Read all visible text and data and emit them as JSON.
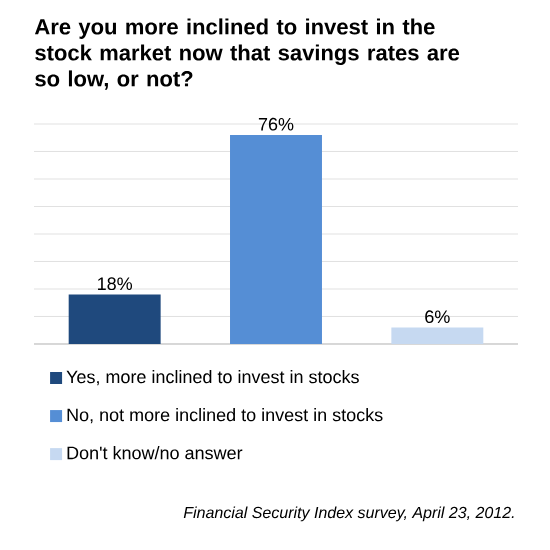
{
  "chart_data": {
    "type": "bar",
    "title": "Are you more inclined to invest in the stock market now that savings rates are so low, or not?",
    "categories": [
      null,
      null,
      null
    ],
    "stacked": true,
    "series": [
      {
        "name": "Yes, more inclined to invest in stocks",
        "color": "#1f497d",
        "values": [
          18,
          null,
          null
        ],
        "value_labels": [
          "18%",
          null,
          null
        ]
      },
      {
        "name": "No, not more inclined to invest in stocks",
        "color": "#558ed5",
        "values": [
          null,
          76,
          null
        ],
        "value_labels": [
          null,
          "76%",
          null
        ]
      },
      {
        "name": "Don't know/no answer",
        "color": "#c6d9f1",
        "values": [
          null,
          null,
          6
        ],
        "value_labels": [
          null,
          null,
          "6%"
        ]
      }
    ],
    "ylim": [
      0,
      80
    ],
    "yticks": [
      {
        "value": 0,
        "label": null
      },
      {
        "value": 10,
        "label": null
      },
      {
        "value": 20,
        "label": null
      },
      {
        "value": 30,
        "label": null
      },
      {
        "value": 40,
        "label": null
      },
      {
        "value": 50,
        "label": null
      },
      {
        "value": 60,
        "label": null
      },
      {
        "value": 70,
        "label": null
      },
      {
        "value": 80,
        "label": null
      }
    ],
    "grid": "y",
    "legend": "bottom",
    "annotations": [
      "Financial Security Index survey, April 23, 2012."
    ]
  }
}
